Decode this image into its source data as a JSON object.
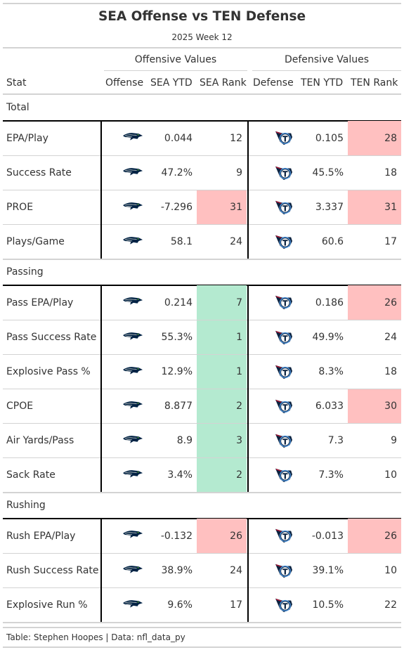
{
  "header": {
    "title": "SEA Offense vs TEN Defense",
    "subtitle": "2025 Week 12"
  },
  "spanners": {
    "offense": "Offensive Values",
    "defense": "Defensive Values"
  },
  "columns": {
    "stat": "Stat",
    "offense": "Offense",
    "sea_ytd": "SEA YTD",
    "sea_rank": "SEA Rank",
    "defense": "Defense",
    "ten_ytd": "TEN YTD",
    "ten_rank": "TEN Rank"
  },
  "icons": {
    "offense_logo": "seahawks-logo-icon",
    "defense_logo": "titans-logo-icon"
  },
  "colors": {
    "rank_bad": "#ffc0c0",
    "rank_good": "#b4ead0",
    "seahawks_navy": "#002244",
    "seahawks_gray": "#a5acaf",
    "titans_navy": "#0c2340",
    "titans_blue": "#4b92db",
    "titans_red": "#c8102e"
  },
  "groups": [
    {
      "label": "Total",
      "rows": [
        {
          "stat": "EPA/Play",
          "sea_ytd": "0.044",
          "sea_rank": "12",
          "sea_hl": "",
          "ten_ytd": "0.105",
          "ten_rank": "28",
          "ten_hl": "red"
        },
        {
          "stat": "Success Rate",
          "sea_ytd": "47.2%",
          "sea_rank": "9",
          "sea_hl": "",
          "ten_ytd": "45.5%",
          "ten_rank": "18",
          "ten_hl": ""
        },
        {
          "stat": "PROE",
          "sea_ytd": "-7.296",
          "sea_rank": "31",
          "sea_hl": "red",
          "ten_ytd": "3.337",
          "ten_rank": "31",
          "ten_hl": "red"
        },
        {
          "stat": "Plays/Game",
          "sea_ytd": "58.1",
          "sea_rank": "24",
          "sea_hl": "",
          "ten_ytd": "60.6",
          "ten_rank": "17",
          "ten_hl": ""
        }
      ]
    },
    {
      "label": "Passing",
      "rows": [
        {
          "stat": "Pass EPA/Play",
          "sea_ytd": "0.214",
          "sea_rank": "7",
          "sea_hl": "green",
          "ten_ytd": "0.186",
          "ten_rank": "26",
          "ten_hl": "red"
        },
        {
          "stat": "Pass Success Rate",
          "sea_ytd": "55.3%",
          "sea_rank": "1",
          "sea_hl": "green",
          "ten_ytd": "49.9%",
          "ten_rank": "24",
          "ten_hl": ""
        },
        {
          "stat": "Explosive Pass %",
          "sea_ytd": "12.9%",
          "sea_rank": "1",
          "sea_hl": "green",
          "ten_ytd": "8.3%",
          "ten_rank": "18",
          "ten_hl": ""
        },
        {
          "stat": "CPOE",
          "sea_ytd": "8.877",
          "sea_rank": "2",
          "sea_hl": "green",
          "ten_ytd": "6.033",
          "ten_rank": "30",
          "ten_hl": "red"
        },
        {
          "stat": "Air Yards/Pass",
          "sea_ytd": "8.9",
          "sea_rank": "3",
          "sea_hl": "green",
          "ten_ytd": "7.3",
          "ten_rank": "9",
          "ten_hl": ""
        },
        {
          "stat": "Sack Rate",
          "sea_ytd": "3.4%",
          "sea_rank": "2",
          "sea_hl": "green",
          "ten_ytd": "7.3%",
          "ten_rank": "10",
          "ten_hl": ""
        }
      ]
    },
    {
      "label": "Rushing",
      "rows": [
        {
          "stat": "Rush EPA/Play",
          "sea_ytd": "-0.132",
          "sea_rank": "26",
          "sea_hl": "red",
          "ten_ytd": "-0.013",
          "ten_rank": "26",
          "ten_hl": "red"
        },
        {
          "stat": "Rush Success Rate",
          "sea_ytd": "38.9%",
          "sea_rank": "24",
          "sea_hl": "",
          "ten_ytd": "39.1%",
          "ten_rank": "10",
          "ten_hl": ""
        },
        {
          "stat": "Explosive Run %",
          "sea_ytd": "9.6%",
          "sea_rank": "17",
          "sea_hl": "",
          "ten_ytd": "10.5%",
          "ten_rank": "22",
          "ten_hl": ""
        }
      ]
    }
  ],
  "footer": {
    "source": "Table: Stephen Hoopes | Data: nfl_data_py"
  }
}
